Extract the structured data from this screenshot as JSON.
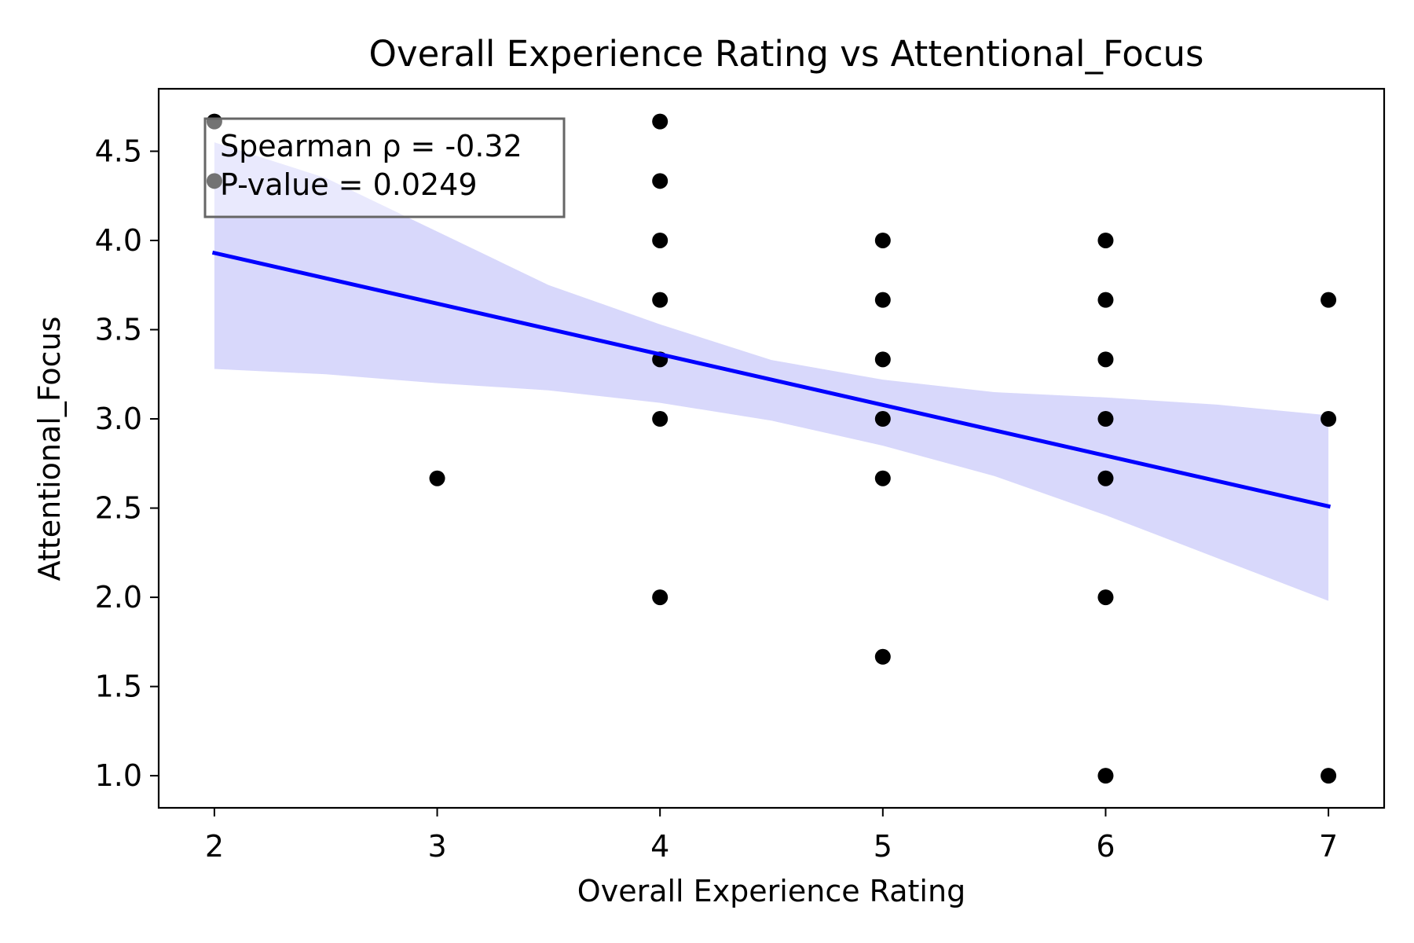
{
  "chart_data": {
    "type": "scatter",
    "title": "Overall Experience Rating vs Attentional_Focus",
    "xlabel": "Overall Experience Rating",
    "ylabel": "Attentional_Focus",
    "xlim": [
      1.75,
      7.25
    ],
    "ylim": [
      0.82,
      4.85
    ],
    "xticks": [
      2,
      3,
      4,
      5,
      6,
      7
    ],
    "yticks": [
      1.0,
      1.5,
      2.0,
      2.5,
      3.0,
      3.5,
      4.0,
      4.5
    ],
    "xtick_labels": [
      "2",
      "3",
      "4",
      "5",
      "6",
      "7"
    ],
    "ytick_labels": [
      "1.0",
      "1.5",
      "2.0",
      "2.5",
      "3.0",
      "3.5",
      "4.0",
      "4.5"
    ],
    "grid": false,
    "points": [
      {
        "x": 2,
        "y": 4.6667
      },
      {
        "x": 2,
        "y": 4.3333
      },
      {
        "x": 3,
        "y": 2.6667
      },
      {
        "x": 4,
        "y": 4.6667
      },
      {
        "x": 4,
        "y": 4.3333
      },
      {
        "x": 4,
        "y": 4.0
      },
      {
        "x": 4,
        "y": 3.6667
      },
      {
        "x": 4,
        "y": 3.3333
      },
      {
        "x": 4,
        "y": 3.0
      },
      {
        "x": 4,
        "y": 2.0
      },
      {
        "x": 5,
        "y": 4.0
      },
      {
        "x": 5,
        "y": 3.6667
      },
      {
        "x": 5,
        "y": 3.3333
      },
      {
        "x": 5,
        "y": 3.0
      },
      {
        "x": 5,
        "y": 2.6667
      },
      {
        "x": 5,
        "y": 1.6667
      },
      {
        "x": 6,
        "y": 4.0
      },
      {
        "x": 6,
        "y": 3.6667
      },
      {
        "x": 6,
        "y": 3.3333
      },
      {
        "x": 6,
        "y": 3.0
      },
      {
        "x": 6,
        "y": 2.6667
      },
      {
        "x": 6,
        "y": 2.0
      },
      {
        "x": 6,
        "y": 1.0
      },
      {
        "x": 7,
        "y": 3.6667
      },
      {
        "x": 7,
        "y": 3.0
      },
      {
        "x": 7,
        "y": 1.0
      }
    ],
    "regression_line": {
      "x": [
        2,
        7
      ],
      "y": [
        3.93,
        2.51
      ]
    },
    "confidence_band": {
      "x": [
        2,
        2.5,
        3,
        3.5,
        4,
        4.5,
        5,
        5.5,
        6,
        6.5,
        7
      ],
      "lower": [
        3.28,
        3.25,
        3.2,
        3.16,
        3.09,
        2.99,
        2.85,
        2.68,
        2.46,
        2.22,
        1.98
      ],
      "upper": [
        4.55,
        4.35,
        4.05,
        3.75,
        3.53,
        3.33,
        3.22,
        3.15,
        3.12,
        3.08,
        3.02
      ]
    },
    "annotation": {
      "line1": "Spearman ρ = -0.32",
      "line2": "P-value = 0.0249"
    },
    "colors": {
      "points": "#000000",
      "line": "#0000ff",
      "band": "#d8d8fb",
      "annotation_border": "#666666"
    }
  }
}
